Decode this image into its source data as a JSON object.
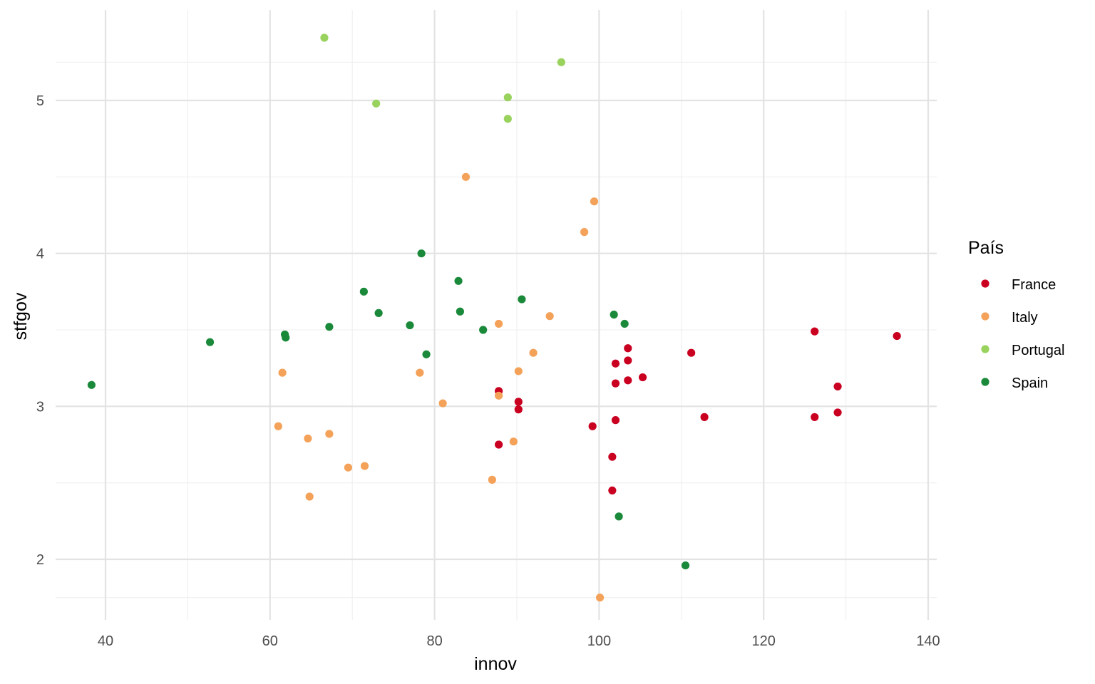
{
  "chart_data": {
    "type": "scatter",
    "title": "",
    "xlabel": "innov",
    "ylabel": "stfgov",
    "xlim": [
      34,
      141
    ],
    "ylim": [
      1.6,
      5.5
    ],
    "x_ticks": [
      40,
      60,
      80,
      100,
      120,
      140
    ],
    "x_minor_ticks": [
      50,
      70,
      90,
      110,
      130
    ],
    "y_ticks": [
      2,
      3,
      4,
      5
    ],
    "y_minor_ticks": [
      2.5,
      3.5,
      4.5
    ],
    "grid": true,
    "legend": {
      "title": "País",
      "position": "right"
    },
    "series": [
      {
        "name": "France",
        "color": "#ca0020",
        "points": [
          [
            87.8,
            3.1
          ],
          [
            90.2,
            3.03
          ],
          [
            90.2,
            2.98
          ],
          [
            87.8,
            2.75
          ],
          [
            99.2,
            2.87
          ],
          [
            101.6,
            2.67
          ],
          [
            101.6,
            2.45
          ],
          [
            102.0,
            2.91
          ],
          [
            102.0,
            3.15
          ],
          [
            102.0,
            3.28
          ],
          [
            103.5,
            3.17
          ],
          [
            103.5,
            3.3
          ],
          [
            103.5,
            3.38
          ],
          [
            105.3,
            3.19
          ],
          [
            111.2,
            3.35
          ],
          [
            112.8,
            2.93
          ],
          [
            126.2,
            3.49
          ],
          [
            126.2,
            2.93
          ],
          [
            129.0,
            3.13
          ],
          [
            129.0,
            2.96
          ],
          [
            136.2,
            3.46
          ]
        ]
      },
      {
        "name": "Italy",
        "color": "#f4a259",
        "points": [
          [
            61.5,
            3.22
          ],
          [
            61.0,
            2.87
          ],
          [
            64.6,
            2.79
          ],
          [
            67.2,
            2.82
          ],
          [
            64.8,
            2.41
          ],
          [
            69.5,
            2.6
          ],
          [
            71.5,
            2.61
          ],
          [
            78.2,
            3.22
          ],
          [
            81.0,
            3.02
          ],
          [
            83.8,
            4.5
          ],
          [
            87.0,
            2.52
          ],
          [
            87.8,
            3.54
          ],
          [
            87.8,
            3.07
          ],
          [
            89.6,
            2.77
          ],
          [
            90.2,
            3.23
          ],
          [
            92.0,
            3.35
          ],
          [
            94.0,
            3.59
          ],
          [
            98.2,
            4.14
          ],
          [
            99.4,
            4.34
          ],
          [
            100.1,
            1.75
          ]
        ]
      },
      {
        "name": "Portugal",
        "color": "#99d35e",
        "points": [
          [
            66.6,
            5.41
          ],
          [
            72.9,
            4.98
          ],
          [
            88.9,
            5.02
          ],
          [
            88.9,
            4.88
          ],
          [
            95.4,
            5.25
          ]
        ]
      },
      {
        "name": "Spain",
        "color": "#1a8a3a",
        "points": [
          [
            38.3,
            3.14
          ],
          [
            52.7,
            3.42
          ],
          [
            61.8,
            3.47
          ],
          [
            61.9,
            3.45
          ],
          [
            67.2,
            3.52
          ],
          [
            71.4,
            3.75
          ],
          [
            73.2,
            3.61
          ],
          [
            77.0,
            3.53
          ],
          [
            78.4,
            4.0
          ],
          [
            79.0,
            3.34
          ],
          [
            82.9,
            3.82
          ],
          [
            83.1,
            3.62
          ],
          [
            85.9,
            3.5
          ],
          [
            90.6,
            3.7
          ],
          [
            101.8,
            3.6
          ],
          [
            103.1,
            3.54
          ],
          [
            102.4,
            2.28
          ],
          [
            110.5,
            1.96
          ]
        ]
      }
    ]
  }
}
